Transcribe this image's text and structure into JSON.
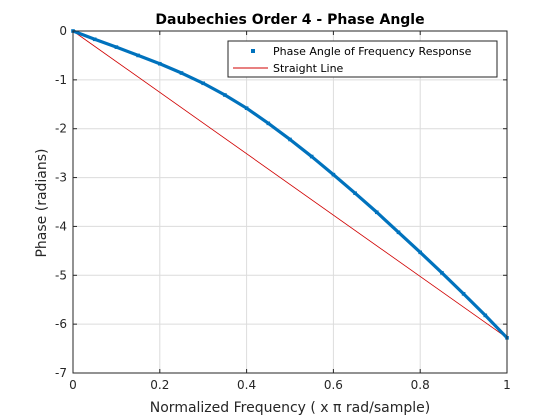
{
  "chart_data": {
    "type": "line",
    "title": "Daubechies Order 4 - Phase Angle",
    "xlabel": "Normalized Frequency ( x π rad/sample)",
    "ylabel": "Phase (radians)",
    "xlim": [
      0,
      1
    ],
    "ylim": [
      -7,
      0
    ],
    "xticks": [
      0,
      0.2,
      0.4,
      0.6,
      0.8,
      1
    ],
    "xtick_labels": [
      "0",
      "0.2",
      "0.4",
      "0.6",
      "0.8",
      "1"
    ],
    "yticks": [
      0,
      -1,
      -2,
      -3,
      -4,
      -5,
      -6,
      -7
    ],
    "ytick_labels": [
      "0",
      "-1",
      "-2",
      "-3",
      "-4",
      "-5",
      "-6",
      "-7"
    ],
    "grid": true,
    "legend_position": "top-right",
    "series": [
      {
        "name": "Phase Angle of Frequency Response",
        "style": "markers",
        "color": "#0072BD",
        "x": [
          0,
          0.05,
          0.1,
          0.15,
          0.2,
          0.25,
          0.3,
          0.35,
          0.4,
          0.45,
          0.5,
          0.55,
          0.6,
          0.65,
          0.7,
          0.75,
          0.8,
          0.85,
          0.9,
          0.95,
          1.0
        ],
        "y": [
          0,
          -0.17,
          -0.33,
          -0.5,
          -0.67,
          -0.86,
          -1.07,
          -1.31,
          -1.58,
          -1.89,
          -2.22,
          -2.57,
          -2.94,
          -3.32,
          -3.71,
          -4.12,
          -4.53,
          -4.95,
          -5.38,
          -5.82,
          -6.28
        ]
      },
      {
        "name": "Straight Line",
        "style": "line",
        "color": "#D00000",
        "x": [
          0,
          1
        ],
        "y": [
          0,
          -6.28
        ]
      }
    ]
  }
}
